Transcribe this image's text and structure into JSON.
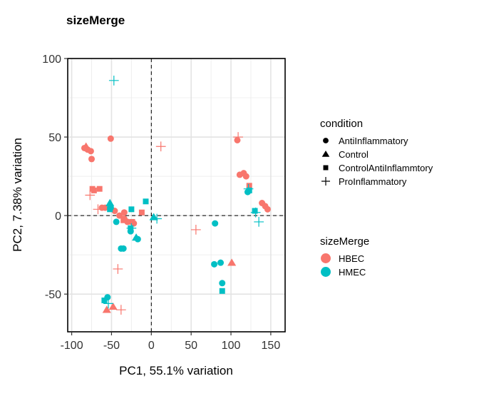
{
  "chart_data": {
    "type": "scatter",
    "title": "sizeMerge",
    "xlabel": "PC1, 55.1% variation",
    "ylabel": "PC2, 7.38% variation",
    "xlim": [
      -105,
      168
    ],
    "ylim": [
      -74,
      100
    ],
    "x_ticks": [
      -100,
      -50,
      0,
      50,
      100,
      150
    ],
    "y_ticks": [
      -50,
      0,
      50,
      100
    ],
    "x_tick_labels": [
      "-100",
      "-50",
      "0",
      "50",
      "100",
      "150"
    ],
    "y_tick_labels": [
      "-50",
      "0",
      "50",
      "100"
    ],
    "grid": true,
    "reference_lines": {
      "x": 0,
      "y": 0,
      "style": "dashed"
    },
    "legends": {
      "shape": {
        "title": "condition",
        "entries": [
          {
            "label": "AntiInflammatory",
            "shape": "circle"
          },
          {
            "label": "Control",
            "shape": "triangle"
          },
          {
            "label": "ControlAntiInflammtory",
            "shape": "square"
          },
          {
            "label": "ProInflammatory",
            "shape": "plus"
          }
        ]
      },
      "color": {
        "title": "sizeMerge",
        "entries": [
          {
            "label": "HBEC",
            "color": "#F8766D"
          },
          {
            "label": "HMEC",
            "color": "#00BFC4"
          }
        ]
      }
    },
    "series": [
      {
        "name": "HBEC",
        "color": "#F8766D",
        "points": [
          {
            "x": -84,
            "y": 43,
            "shape": "circle"
          },
          {
            "x": -80,
            "y": 42,
            "shape": "circle"
          },
          {
            "x": -76,
            "y": 41,
            "shape": "circle"
          },
          {
            "x": -75,
            "y": 36,
            "shape": "circle"
          },
          {
            "x": -51,
            "y": 49,
            "shape": "circle"
          },
          {
            "x": -62,
            "y": 5,
            "shape": "circle"
          },
          {
            "x": -58,
            "y": 5,
            "shape": "circle"
          },
          {
            "x": -46,
            "y": 3,
            "shape": "circle"
          },
          {
            "x": -40,
            "y": 0,
            "shape": "circle"
          },
          {
            "x": -34,
            "y": 2,
            "shape": "circle"
          },
          {
            "x": -34,
            "y": -2,
            "shape": "circle"
          },
          {
            "x": -30,
            "y": -4,
            "shape": "circle"
          },
          {
            "x": -22,
            "y": -5,
            "shape": "circle"
          },
          {
            "x": 108,
            "y": 48,
            "shape": "circle"
          },
          {
            "x": 111,
            "y": 26,
            "shape": "circle"
          },
          {
            "x": 116,
            "y": 27,
            "shape": "circle"
          },
          {
            "x": 119,
            "y": 25,
            "shape": "circle"
          },
          {
            "x": 139,
            "y": 8,
            "shape": "circle"
          },
          {
            "x": 143,
            "y": 6,
            "shape": "circle"
          },
          {
            "x": 146,
            "y": 4,
            "shape": "circle"
          },
          {
            "x": -82,
            "y": 44,
            "shape": "triangle"
          },
          {
            "x": 101,
            "y": -30,
            "shape": "triangle"
          },
          {
            "x": -56,
            "y": -60,
            "shape": "triangle"
          },
          {
            "x": -48,
            "y": -58,
            "shape": "triangle"
          },
          {
            "x": -74,
            "y": 17,
            "shape": "square"
          },
          {
            "x": -72,
            "y": 16,
            "shape": "square"
          },
          {
            "x": -65,
            "y": 17,
            "shape": "square"
          },
          {
            "x": -12,
            "y": 2,
            "shape": "square"
          },
          {
            "x": -24,
            "y": -4,
            "shape": "square"
          },
          {
            "x": -35,
            "y": -3,
            "shape": "square"
          },
          {
            "x": 123,
            "y": 19,
            "shape": "square"
          },
          {
            "x": -77,
            "y": 13,
            "shape": "plus"
          },
          {
            "x": -67,
            "y": 4,
            "shape": "plus"
          },
          {
            "x": 109,
            "y": 50,
            "shape": "plus"
          },
          {
            "x": 12,
            "y": 44,
            "shape": "plus"
          },
          {
            "x": 56,
            "y": -9,
            "shape": "plus"
          },
          {
            "x": -42,
            "y": -34,
            "shape": "plus"
          },
          {
            "x": -38,
            "y": -60,
            "shape": "plus"
          }
        ]
      },
      {
        "name": "HMEC",
        "color": "#00BFC4",
        "points": [
          {
            "x": -51,
            "y": 5,
            "shape": "circle"
          },
          {
            "x": -44,
            "y": -4,
            "shape": "circle"
          },
          {
            "x": -38,
            "y": -21,
            "shape": "circle"
          },
          {
            "x": -35,
            "y": -21,
            "shape": "circle"
          },
          {
            "x": -17,
            "y": -15,
            "shape": "circle"
          },
          {
            "x": -55,
            "y": -52,
            "shape": "circle"
          },
          {
            "x": -26,
            "y": -10,
            "shape": "circle"
          },
          {
            "x": 80,
            "y": -5,
            "shape": "circle"
          },
          {
            "x": 79,
            "y": -31,
            "shape": "circle"
          },
          {
            "x": 87,
            "y": -30,
            "shape": "circle"
          },
          {
            "x": 89,
            "y": -43,
            "shape": "circle"
          },
          {
            "x": 121,
            "y": 15,
            "shape": "circle"
          },
          {
            "x": -52,
            "y": 8,
            "shape": "triangle"
          },
          {
            "x": -19,
            "y": -14,
            "shape": "triangle"
          },
          {
            "x": 3,
            "y": -1,
            "shape": "triangle"
          },
          {
            "x": -52,
            "y": 4,
            "shape": "square"
          },
          {
            "x": -59,
            "y": -54,
            "shape": "square"
          },
          {
            "x": -25,
            "y": 4,
            "shape": "square"
          },
          {
            "x": -26,
            "y": -8,
            "shape": "square"
          },
          {
            "x": -7,
            "y": 9,
            "shape": "square"
          },
          {
            "x": 89,
            "y": -48,
            "shape": "square"
          },
          {
            "x": 130,
            "y": 3,
            "shape": "square"
          },
          {
            "x": 123,
            "y": 16,
            "shape": "square"
          },
          {
            "x": -47,
            "y": 86,
            "shape": "plus"
          },
          {
            "x": -25,
            "y": -8,
            "shape": "plus"
          },
          {
            "x": 122,
            "y": 17,
            "shape": "plus"
          },
          {
            "x": 131,
            "y": 2,
            "shape": "plus"
          },
          {
            "x": 135,
            "y": -4,
            "shape": "plus"
          },
          {
            "x": 7,
            "y": -2,
            "shape": "plus"
          },
          {
            "x": -54,
            "y": -56,
            "shape": "plus"
          }
        ]
      }
    ]
  }
}
